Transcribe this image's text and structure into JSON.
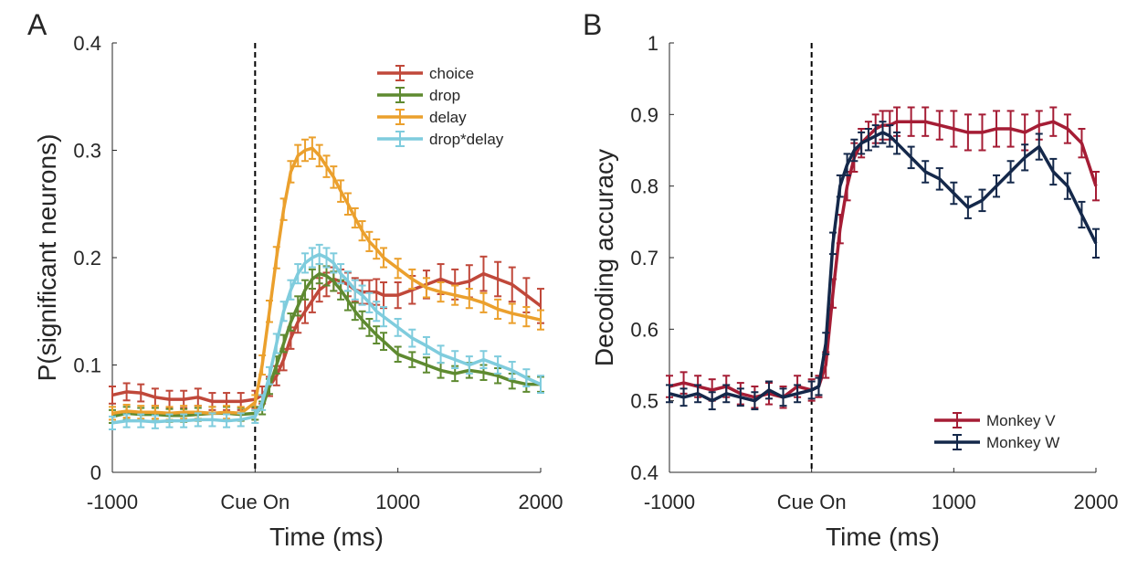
{
  "panels": {
    "a_label": "A",
    "b_label": "B"
  },
  "chart_data": [
    {
      "type": "line",
      "panel": "A",
      "xlabel": "Time (ms)",
      "ylabel": "P(significant neurons)",
      "xlim": [
        -1000,
        2000
      ],
      "ylim": [
        0,
        0.4
      ],
      "xticks": [
        -1000,
        0,
        1000,
        2000
      ],
      "xtick_labels": [
        "-1000",
        "Cue On",
        "1000",
        "2000"
      ],
      "yticks": [
        0,
        0.1,
        0.2,
        0.3,
        0.4
      ],
      "ytick_labels": [
        "0",
        "0.1",
        "0.2",
        "0.3",
        "0.4"
      ],
      "cue_line_x": 0,
      "grid": false,
      "legend_position": "top-right",
      "x": [
        -1000,
        -900,
        -800,
        -700,
        -600,
        -500,
        -400,
        -300,
        -200,
        -100,
        0,
        50,
        100,
        150,
        200,
        250,
        300,
        350,
        400,
        450,
        500,
        550,
        600,
        650,
        700,
        750,
        800,
        850,
        900,
        1000,
        1100,
        1200,
        1300,
        1400,
        1500,
        1600,
        1700,
        1800,
        1900,
        2000
      ],
      "series": [
        {
          "name": "choice",
          "color": "#C0483A",
          "values": [
            0.072,
            0.075,
            0.074,
            0.07,
            0.068,
            0.068,
            0.07,
            0.066,
            0.066,
            0.066,
            0.068,
            0.072,
            0.08,
            0.09,
            0.105,
            0.125,
            0.14,
            0.15,
            0.16,
            0.17,
            0.175,
            0.18,
            0.178,
            0.175,
            0.17,
            0.168,
            0.168,
            0.168,
            0.165,
            0.165,
            0.17,
            0.175,
            0.18,
            0.175,
            0.178,
            0.185,
            0.18,
            0.175,
            0.165,
            0.155
          ],
          "errors": [
            0.008,
            0.008,
            0.008,
            0.008,
            0.008,
            0.008,
            0.008,
            0.008,
            0.008,
            0.008,
            0.008,
            0.008,
            0.009,
            0.009,
            0.01,
            0.01,
            0.01,
            0.011,
            0.011,
            0.011,
            0.011,
            0.011,
            0.011,
            0.011,
            0.011,
            0.011,
            0.011,
            0.012,
            0.012,
            0.012,
            0.013,
            0.013,
            0.014,
            0.014,
            0.015,
            0.016,
            0.016,
            0.016,
            0.016,
            0.016
          ]
        },
        {
          "name": "drop",
          "color": "#5E8A30",
          "values": [
            0.052,
            0.055,
            0.054,
            0.054,
            0.053,
            0.053,
            0.054,
            0.055,
            0.055,
            0.054,
            0.055,
            0.06,
            0.08,
            0.1,
            0.12,
            0.14,
            0.155,
            0.17,
            0.18,
            0.185,
            0.183,
            0.178,
            0.17,
            0.16,
            0.15,
            0.142,
            0.135,
            0.128,
            0.122,
            0.11,
            0.105,
            0.1,
            0.095,
            0.092,
            0.095,
            0.093,
            0.09,
            0.085,
            0.082,
            0.082
          ],
          "errors": [
            0.006,
            0.006,
            0.006,
            0.006,
            0.006,
            0.006,
            0.006,
            0.006,
            0.006,
            0.006,
            0.006,
            0.006,
            0.007,
            0.008,
            0.008,
            0.008,
            0.009,
            0.009,
            0.009,
            0.009,
            0.009,
            0.009,
            0.009,
            0.009,
            0.008,
            0.008,
            0.008,
            0.008,
            0.008,
            0.007,
            0.007,
            0.007,
            0.007,
            0.007,
            0.007,
            0.007,
            0.007,
            0.007,
            0.007,
            0.007
          ]
        },
        {
          "name": "delay",
          "color": "#EBA02D",
          "values": [
            0.055,
            0.057,
            0.056,
            0.056,
            0.055,
            0.056,
            0.056,
            0.055,
            0.056,
            0.055,
            0.065,
            0.1,
            0.15,
            0.2,
            0.245,
            0.28,
            0.295,
            0.3,
            0.302,
            0.295,
            0.285,
            0.275,
            0.262,
            0.25,
            0.237,
            0.225,
            0.215,
            0.208,
            0.2,
            0.19,
            0.18,
            0.172,
            0.168,
            0.165,
            0.162,
            0.158,
            0.152,
            0.148,
            0.145,
            0.142
          ],
          "errors": [
            0.006,
            0.006,
            0.006,
            0.006,
            0.006,
            0.006,
            0.006,
            0.006,
            0.006,
            0.006,
            0.007,
            0.009,
            0.01,
            0.01,
            0.01,
            0.01,
            0.01,
            0.01,
            0.01,
            0.01,
            0.01,
            0.01,
            0.01,
            0.01,
            0.009,
            0.009,
            0.009,
            0.009,
            0.009,
            0.009,
            0.009,
            0.009,
            0.009,
            0.009,
            0.009,
            0.009,
            0.009,
            0.009,
            0.009,
            0.009
          ]
        },
        {
          "name": "drop*delay",
          "color": "#7FCCDD",
          "values": [
            0.046,
            0.048,
            0.048,
            0.047,
            0.048,
            0.048,
            0.049,
            0.049,
            0.048,
            0.049,
            0.052,
            0.065,
            0.09,
            0.12,
            0.15,
            0.17,
            0.185,
            0.195,
            0.2,
            0.203,
            0.2,
            0.195,
            0.185,
            0.178,
            0.17,
            0.165,
            0.158,
            0.15,
            0.145,
            0.135,
            0.125,
            0.118,
            0.11,
            0.105,
            0.1,
            0.105,
            0.1,
            0.095,
            0.088,
            0.082
          ],
          "errors": [
            0.006,
            0.006,
            0.006,
            0.006,
            0.006,
            0.006,
            0.006,
            0.006,
            0.006,
            0.006,
            0.006,
            0.007,
            0.008,
            0.009,
            0.009,
            0.009,
            0.009,
            0.009,
            0.009,
            0.009,
            0.009,
            0.009,
            0.009,
            0.009,
            0.009,
            0.009,
            0.009,
            0.009,
            0.009,
            0.008,
            0.008,
            0.008,
            0.008,
            0.008,
            0.008,
            0.008,
            0.008,
            0.008,
            0.008,
            0.008
          ]
        }
      ]
    },
    {
      "type": "line",
      "panel": "B",
      "xlabel": "Time (ms)",
      "ylabel": "Decoding accuracy",
      "xlim": [
        -1000,
        2000
      ],
      "ylim": [
        0.4,
        1
      ],
      "xticks": [
        -1000,
        0,
        1000,
        2000
      ],
      "xtick_labels": [
        "-1000",
        "Cue On",
        "1000",
        "2000"
      ],
      "yticks": [
        0.4,
        0.5,
        0.6,
        0.7,
        0.8,
        0.9,
        1
      ],
      "ytick_labels": [
        "0.4",
        "0.5",
        "0.6",
        "0.7",
        "0.8",
        "0.9",
        "1"
      ],
      "cue_line_x": 0,
      "grid": false,
      "legend_position": "bottom-right",
      "x": [
        -1000,
        -900,
        -800,
        -700,
        -600,
        -500,
        -400,
        -300,
        -200,
        -100,
        0,
        50,
        100,
        150,
        200,
        250,
        300,
        350,
        400,
        450,
        500,
        550,
        600,
        700,
        800,
        900,
        1000,
        1100,
        1200,
        1300,
        1400,
        1500,
        1600,
        1700,
        1800,
        1900,
        2000
      ],
      "series": [
        {
          "name": "Monkey V",
          "color": "#A51D35",
          "values": [
            0.52,
            0.525,
            0.52,
            0.515,
            0.52,
            0.51,
            0.505,
            0.51,
            0.505,
            0.52,
            0.515,
            0.52,
            0.55,
            0.65,
            0.74,
            0.8,
            0.84,
            0.86,
            0.87,
            0.88,
            0.885,
            0.885,
            0.89,
            0.89,
            0.89,
            0.885,
            0.88,
            0.875,
            0.875,
            0.88,
            0.88,
            0.875,
            0.885,
            0.89,
            0.88,
            0.86,
            0.8
          ],
          "errors": [
            0.015,
            0.015,
            0.015,
            0.015,
            0.015,
            0.015,
            0.015,
            0.015,
            0.015,
            0.015,
            0.015,
            0.015,
            0.018,
            0.02,
            0.02,
            0.02,
            0.02,
            0.02,
            0.02,
            0.02,
            0.02,
            0.02,
            0.02,
            0.02,
            0.02,
            0.02,
            0.025,
            0.025,
            0.025,
            0.025,
            0.025,
            0.025,
            0.02,
            0.02,
            0.02,
            0.02,
            0.02
          ]
        },
        {
          "name": "Monkey W",
          "color": "#14284A",
          "values": [
            0.51,
            0.505,
            0.51,
            0.5,
            0.51,
            0.505,
            0.5,
            0.515,
            0.505,
            0.51,
            0.515,
            0.52,
            0.58,
            0.72,
            0.8,
            0.83,
            0.85,
            0.86,
            0.865,
            0.87,
            0.875,
            0.87,
            0.86,
            0.84,
            0.82,
            0.81,
            0.79,
            0.77,
            0.78,
            0.8,
            0.82,
            0.84,
            0.855,
            0.82,
            0.8,
            0.76,
            0.72
          ],
          "errors": [
            0.012,
            0.012,
            0.012,
            0.012,
            0.012,
            0.012,
            0.012,
            0.012,
            0.012,
            0.012,
            0.012,
            0.012,
            0.015,
            0.015,
            0.015,
            0.015,
            0.015,
            0.015,
            0.015,
            0.015,
            0.015,
            0.015,
            0.015,
            0.015,
            0.015,
            0.015,
            0.015,
            0.015,
            0.015,
            0.015,
            0.015,
            0.018,
            0.018,
            0.018,
            0.018,
            0.018,
            0.02
          ]
        }
      ]
    }
  ]
}
